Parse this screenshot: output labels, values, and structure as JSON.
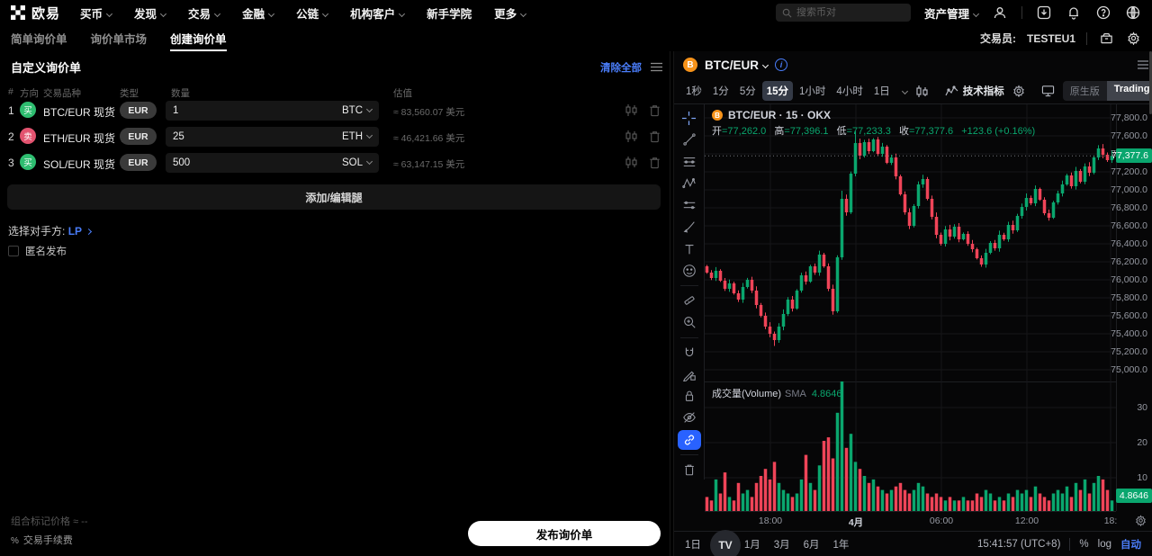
{
  "topnav": {
    "brand": "欧易",
    "menu": [
      {
        "label": "买币",
        "caret": true
      },
      {
        "label": "发现",
        "caret": true
      },
      {
        "label": "交易",
        "caret": true
      },
      {
        "label": "金融",
        "caret": true
      },
      {
        "label": "公链",
        "caret": true
      },
      {
        "label": "机构客户",
        "caret": true
      },
      {
        "label": "新手学院",
        "caret": false
      },
      {
        "label": "更多",
        "caret": true
      }
    ],
    "search_placeholder": "搜索币对",
    "assets_label": "资产管理"
  },
  "subnav": {
    "tabs": [
      "简单询价单",
      "询价单市场",
      "创建询价单"
    ],
    "active_index": 2,
    "trader_label": "交易员:",
    "trader_value": "TESTEU1"
  },
  "rfq": {
    "title": "自定义询价单",
    "clear_all": "清除全部",
    "columns": [
      "#",
      "方向",
      "交易品种",
      "类型",
      "数量",
      "估值"
    ],
    "rows": [
      {
        "index": "1",
        "side": "buy",
        "side_label": "买",
        "pair": "BTC/EUR",
        "market": "现货",
        "currency": "EUR",
        "qty": "1",
        "unit": "BTC",
        "value": "≈ 83,560.07 美元"
      },
      {
        "index": "2",
        "side": "sell",
        "side_label": "卖",
        "pair": "ETH/EUR",
        "market": "现货",
        "currency": "EUR",
        "qty": "25",
        "unit": "ETH",
        "value": "≈ 46,421.66 美元"
      },
      {
        "index": "3",
        "side": "buy",
        "side_label": "买",
        "pair": "SOL/EUR",
        "market": "现货",
        "currency": "EUR",
        "qty": "500",
        "unit": "SOL",
        "value": "≈ 63,147.15 美元"
      }
    ],
    "add_leg": "添加/编辑腿",
    "counterparty_label": "选择对手方:",
    "counterparty_value": "LP",
    "anonymous_label": "匿名发布",
    "mark_price_label": "组合标记价格",
    "mark_price_value": "≈ --",
    "fee_pct": "%",
    "fee_label": "交易手续费",
    "submit_label": "发布询价单"
  },
  "chart": {
    "symbol": "BTC/EUR",
    "coin_letter": "B",
    "info_glyph": "i",
    "timeframes": [
      "1秒",
      "1分",
      "5分",
      "15分",
      "1小时",
      "4小时",
      "1日"
    ],
    "active_timeframe_index": 3,
    "indicators_label": "技术指标",
    "native_label": "原生版",
    "tv_label": "TradingView",
    "legend": {
      "title": "BTC/EUR · 15 · OKX",
      "o_label": "开",
      "o_val": "=77,262.0",
      "h_label": "高",
      "h_val": "=77,396.1",
      "l_label": "低",
      "l_val": "=77,233.3",
      "c_label": "收",
      "c_val": "=77,377.6",
      "change": "+123.6 (+0.16%)"
    },
    "volume_label": "成交量(Volume)",
    "sma_label": "SMA",
    "sma_value": "4.8646",
    "last_price_tag": "77,377.6",
    "volume_tag": "4.8646",
    "watermark": "TV",
    "range_tabs": [
      "1日",
      "5日",
      "1月",
      "3月",
      "6月",
      "1年"
    ],
    "clock": "15:41:57 (UTC+8)",
    "percent_label": "%",
    "log_label": "log",
    "auto_label": "自动"
  },
  "chart_data": {
    "type": "candlestick+volume",
    "symbol": "BTC/EUR",
    "interval": "15分",
    "exchange": "OKX",
    "ohlc_legend": {
      "open": 77262.0,
      "high": 77396.1,
      "low": 77233.3,
      "close": 77377.6,
      "change_abs": 123.6,
      "change_pct": 0.16
    },
    "last_price": 77377.6,
    "volume_sma": 4.8646,
    "price_axis_ticks": [
      "77,800.0",
      "77,600.0",
      "77,400.0",
      "77,200.0",
      "77,000.0",
      "76,800.0",
      "76,600.0",
      "76,400.0",
      "76,200.0",
      "76,000.0",
      "75,800.0",
      "75,600.0",
      "75,400.0",
      "75,200.0",
      "75,000.0"
    ],
    "volume_axis_ticks": [
      "30",
      "20",
      "10"
    ],
    "time_ticks": [
      {
        "label": "18:00",
        "major": false
      },
      {
        "label": "4月",
        "major": true
      },
      {
        "label": "06:00",
        "major": false
      },
      {
        "label": "12:00",
        "major": false
      },
      {
        "label": "18:",
        "major": false
      }
    ],
    "first_open": 76150,
    "closes": [
      76080,
      76020,
      76100,
      75990,
      75900,
      75960,
      75850,
      75780,
      75920,
      76000,
      75880,
      75720,
      75600,
      75480,
      75400,
      75330,
      75480,
      75620,
      75780,
      75680,
      75880,
      76050,
      75980,
      76150,
      76080,
      76280,
      76150,
      75900,
      75650,
      76250,
      76900,
      76750,
      77180,
      77520,
      77380,
      77530,
      77430,
      77560,
      77400,
      77480,
      77300,
      77360,
      77150,
      76950,
      76750,
      76600,
      76820,
      77060,
      77120,
      76900,
      76700,
      76500,
      76400,
      76560,
      76480,
      76590,
      76450,
      76510,
      76400,
      76340,
      76240,
      76170,
      76300,
      76410,
      76350,
      76500,
      76450,
      76610,
      76550,
      76710,
      76810,
      76910,
      76850,
      77010,
      76890,
      76740,
      76690,
      76860,
      76960,
      77060,
      77160,
      77040,
      77210,
      77090,
      77260,
      77190,
      77360,
      77460,
      77390,
      77330,
      77377.6
    ],
    "volumes": [
      4,
      3,
      9,
      5,
      11,
      4,
      3,
      8,
      5,
      6,
      4,
      8,
      10,
      12,
      9,
      14,
      8,
      6,
      5,
      4,
      5,
      9,
      16,
      8,
      6,
      13,
      20,
      21,
      15,
      28,
      37,
      18,
      22,
      14,
      12,
      10,
      8,
      9,
      7,
      6,
      5,
      6,
      7,
      8,
      6,
      5,
      6,
      8,
      7,
      5,
      4,
      5,
      4,
      3,
      4,
      3,
      3,
      4,
      3,
      3,
      5,
      4,
      6,
      5,
      3,
      4,
      3,
      5,
      4,
      6,
      5,
      6,
      4,
      7,
      5,
      4,
      3,
      5,
      6,
      5,
      7,
      4,
      8,
      6,
      9,
      5,
      8,
      10,
      9,
      6,
      3
    ],
    "up_color": "#0aa66e",
    "down_color": "#ef4458",
    "grid_color": "#161619"
  }
}
